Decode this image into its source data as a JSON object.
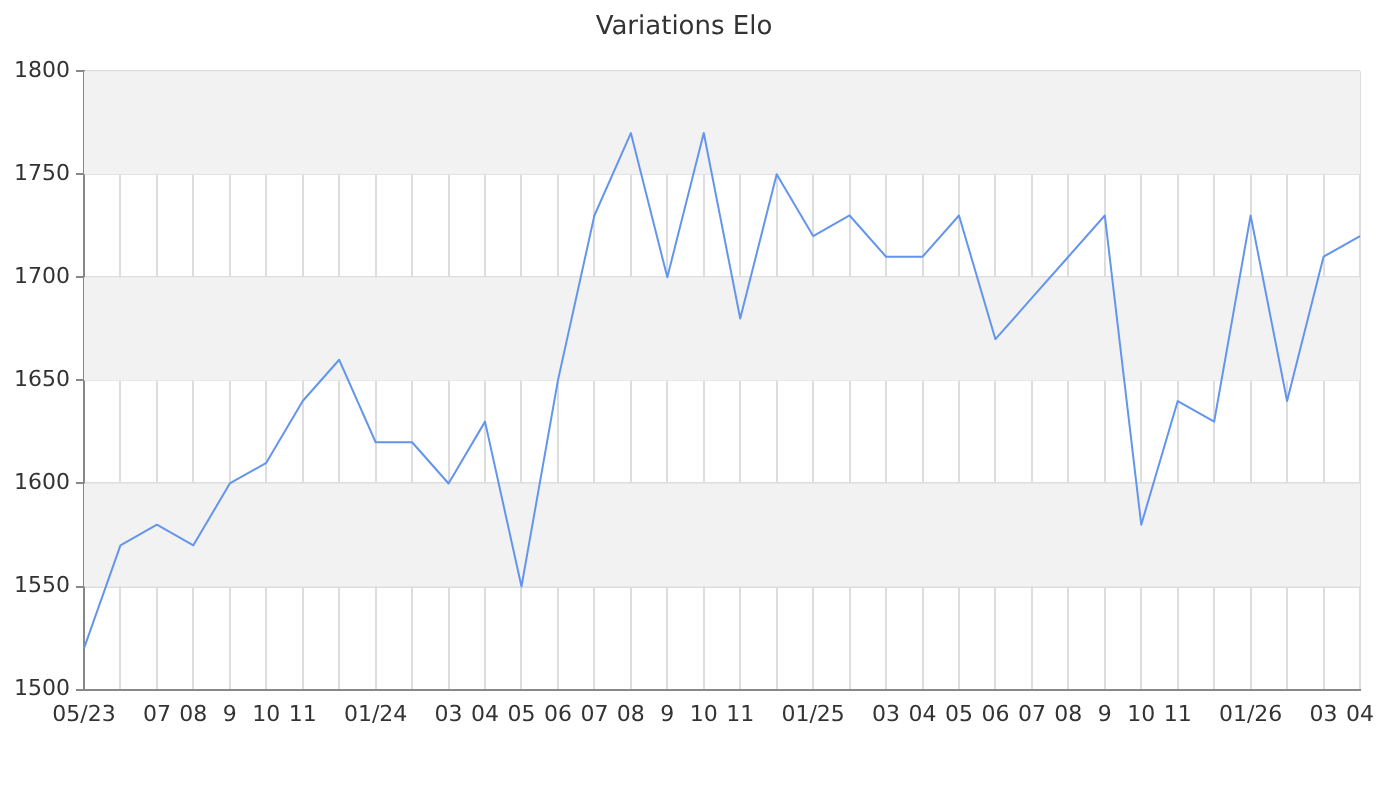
{
  "chart_data": {
    "type": "line",
    "title": "Variations Elo",
    "categories": [
      "05/23",
      null,
      "07",
      "08",
      "9",
      "10",
      "11",
      null,
      "01/24",
      null,
      "03",
      "04",
      "05",
      "06",
      "07",
      "08",
      "9",
      "10",
      "11",
      null,
      "01/25",
      null,
      "03",
      "04",
      "05",
      "06",
      "07",
      "08",
      "9",
      "10",
      "11",
      null,
      "01/26",
      null,
      "03",
      "04"
    ],
    "series": [
      {
        "color": "#6495ed",
        "values": [
          1520,
          1570,
          1580,
          1570,
          1600,
          1610,
          1640,
          1660,
          1620,
          1620,
          1600,
          1630,
          1550,
          1650,
          1730,
          1770,
          1700,
          1770,
          1680,
          1750,
          1720,
          1730,
          1710,
          1710,
          1730,
          1670,
          1690,
          1710,
          1730,
          1580,
          1640,
          1630,
          1730,
          1640,
          1710,
          1720
        ]
      }
    ],
    "ylim": [
      1500,
      1800
    ],
    "yticks": [
      1500,
      1550,
      1600,
      1650,
      1700,
      1750,
      1800
    ],
    "bands": [
      {
        "axis": "y",
        "from": 1550,
        "to": 1600,
        "color": "#f2f2f2"
      },
      {
        "axis": "y",
        "from": 1650,
        "to": 1700,
        "color": "#f2f2f2"
      },
      {
        "axis": "y",
        "from": 1750,
        "to": 1800,
        "color": "#f2f2f2"
      }
    ],
    "grid": true,
    "legend": false,
    "marker": "none",
    "line_style": "solid"
  }
}
